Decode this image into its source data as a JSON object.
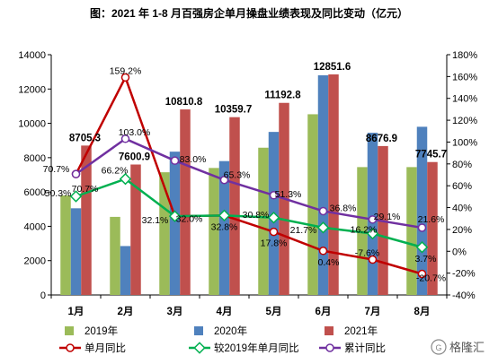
{
  "chart_data": {
    "type": "bar",
    "title": "图：2021 年 1-8 月百强房企单月操盘业绩表现及同比变动（亿元）",
    "categories": [
      "1月",
      "2月",
      "3月",
      "4月",
      "5月",
      "6月",
      "7月",
      "8月"
    ],
    "y_left": {
      "range": [
        0,
        14000
      ],
      "ticks": [
        "0",
        "2000",
        "4000",
        "6000",
        "8000",
        "10000",
        "12000",
        "14000"
      ]
    },
    "y_right": {
      "range": [
        -40,
        180
      ],
      "ticks": [
        "-40%",
        "-20%",
        "0%",
        "20%",
        "40%",
        "60%",
        "80%",
        "100%",
        "120%",
        "140%",
        "160%",
        "180%"
      ]
    },
    "bar_series": [
      {
        "name": "2019年",
        "color": "#9bbb59",
        "values": [
          5800,
          4550,
          7150,
          7400,
          8580,
          10530,
          7450,
          7450
        ]
      },
      {
        "name": "2020年",
        "color": "#4f81bd",
        "values": [
          5050,
          2850,
          8350,
          7800,
          9500,
          12800,
          9450,
          9800
        ]
      },
      {
        "name": "2021年",
        "color": "#c0504d",
        "values": [
          8705.3,
          7600.9,
          10810.8,
          10359.7,
          11192.8,
          12851.6,
          8676.9,
          7745.7
        ]
      }
    ],
    "bar_labels": [
      "8705.3",
      "7600.9",
      "10810.8",
      "10359.7",
      "11192.8",
      "12851.6",
      "8676.9",
      "7745.7"
    ],
    "line_series": [
      {
        "name": "单月同比",
        "color": "#c00000",
        "values": [
          70.7,
          159.2,
          32.0,
          32.8,
          17.8,
          0.4,
          -7.6,
          -20.7
        ],
        "labels": [
          "70.7%",
          "159.2%",
          "32.0%",
          "32.8%",
          "17.8%",
          "0.4%",
          "-7.6%",
          "-20.7%"
        ]
      },
      {
        "name": "较2019年单月同比",
        "color": "#00b050",
        "values": [
          50.3,
          66.2,
          32.1,
          32.8,
          30.8,
          21.7,
          16.2,
          3.7
        ],
        "labels": [
          "50.3%",
          "66.2%",
          "32.1%",
          "",
          "30.8%",
          "21.7%",
          "16.2%",
          "3.7%"
        ]
      },
      {
        "name": "累计同比",
        "color": "#7030a0",
        "values": [
          70.7,
          103.0,
          83.0,
          65.3,
          51.3,
          36.8,
          29.1,
          21.6
        ],
        "labels": [
          "70.7%",
          "103.0%",
          "83.0%",
          "65.3%",
          "51.3%",
          "36.8%",
          "29.1%",
          "21.6%"
        ]
      }
    ],
    "grid": false,
    "legend_position": "bottom"
  },
  "watermark": "格隆汇"
}
